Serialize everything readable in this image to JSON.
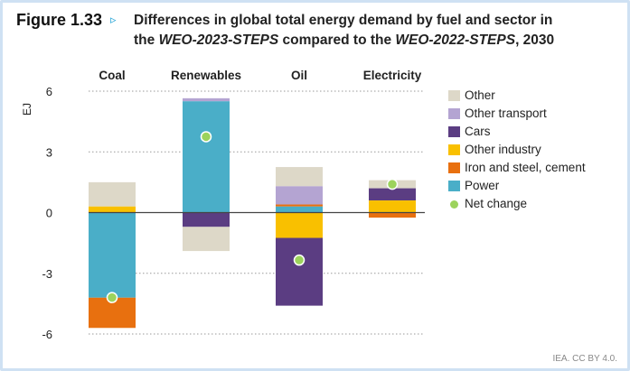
{
  "figure": {
    "number": "Figure 1.33",
    "arrow": "▹",
    "title_line1": "Differences in global total energy demand by fuel and sector in",
    "title_line2_prefix": "the ",
    "title_line2_ital1": "WEO-2023-STEPS",
    "title_line2_mid": " compared to the ",
    "title_line2_ital2": "WEO-2022-STEPS",
    "title_line2_suffix": ", 2030"
  },
  "credit": "IEA. CC BY 4.0.",
  "chart_data": {
    "type": "bar",
    "stacked": true,
    "ylabel": "EJ",
    "ylim": [
      -6,
      6
    ],
    "yticks": [
      6,
      3,
      0,
      -3,
      -6
    ],
    "grid": "dotted horizontal",
    "legend_position": "right",
    "categories": [
      "Coal",
      "Renewables",
      "Oil",
      "Electricity"
    ],
    "series": [
      {
        "name": "Other",
        "color": "#ddd8c8",
        "segments": [
          [
            0.3,
            1.5
          ],
          [
            -1.9,
            -0.7
          ],
          [
            1.3,
            2.25
          ],
          [
            1.2,
            1.6
          ]
        ]
      },
      {
        "name": "Other transport",
        "color": "#b4a4d2",
        "segments": [
          [
            0,
            0
          ],
          [
            5.5,
            5.65
          ],
          [
            0.4,
            1.3
          ],
          [
            0,
            0
          ]
        ]
      },
      {
        "name": "Cars",
        "color": "#5b3d82",
        "segments": [
          [
            0,
            0
          ],
          [
            -0.7,
            0
          ],
          [
            -4.6,
            -1.25
          ],
          [
            0.6,
            1.2
          ]
        ]
      },
      {
        "name": "Other industry",
        "color": "#f9c000",
        "segments": [
          [
            0,
            0.3
          ],
          [
            0,
            0
          ],
          [
            -1.25,
            0
          ],
          [
            0,
            0.6
          ]
        ]
      },
      {
        "name": "Iron and steel, cement",
        "color": "#e8700f",
        "segments": [
          [
            -5.7,
            -4.2
          ],
          [
            0,
            0
          ],
          [
            0.3,
            0.4
          ],
          [
            -0.25,
            0
          ]
        ]
      },
      {
        "name": "Power",
        "color": "#4aaec8",
        "segments": [
          [
            -4.2,
            0
          ],
          [
            0,
            5.5
          ],
          [
            0,
            0.3
          ],
          [
            0,
            0
          ]
        ]
      }
    ],
    "net_change": {
      "name": "Net change",
      "color": "#9cd35c",
      "values": [
        -4.2,
        3.75,
        -2.35,
        1.4
      ]
    }
  }
}
